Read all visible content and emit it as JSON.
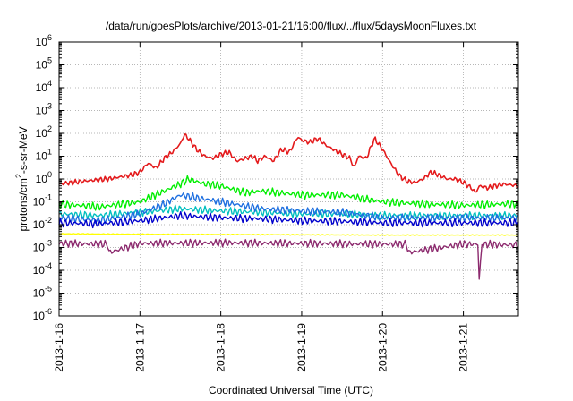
{
  "chart_data": {
    "type": "line",
    "title": "/data/run/goesPlots/archive/2013-01-21/16:00/flux/../flux/5daysMoonFluxes.txt",
    "xlabel": "Coordinated Universal Time (UTC)",
    "ylabel_parts": [
      "protons/cm",
      "2",
      "-s-sr-MeV"
    ],
    "x_range": [
      "2013-1-16",
      "2013-1-21 16:00"
    ],
    "x_ticks": [
      "2013-1-16",
      "2013-1-17",
      "2013-1-18",
      "2013-1-19",
      "2013-1-20",
      "2013-1-21"
    ],
    "y_scale": "log",
    "ylim": [
      1e-06,
      1000000.0
    ],
    "y_tick_exponents": [
      "-6",
      "-5",
      "-4",
      "-3",
      "-2",
      "-1",
      "0",
      "1",
      "2",
      "3",
      "4",
      "5",
      "6"
    ],
    "y_tick_base": "10",
    "grid": true,
    "legend": "none",
    "series": [
      {
        "color": "#e41a1c",
        "x_days": [
          0.0,
          0.3,
          0.6,
          0.9,
          1.0,
          1.1,
          1.2,
          1.3,
          1.4,
          1.5,
          1.55,
          1.6,
          1.7,
          1.8,
          1.9,
          2.0,
          2.1,
          2.2,
          2.3,
          2.4,
          2.45,
          2.55,
          2.65,
          2.75,
          2.85,
          2.95,
          3.0,
          3.1,
          3.2,
          3.3,
          3.45,
          3.6,
          3.65,
          3.7,
          3.8,
          3.9,
          4.0,
          4.1,
          4.2,
          4.3,
          4.4,
          4.5,
          4.6,
          4.7,
          4.8,
          4.9,
          5.0,
          5.1,
          5.15,
          5.2,
          5.3,
          5.4,
          5.5,
          5.68
        ],
        "values": [
          0.6,
          0.8,
          1.0,
          1.5,
          2.0,
          5.0,
          3.0,
          8.0,
          15.0,
          35.0,
          90.0,
          60.0,
          20.0,
          10.0,
          8.0,
          12.0,
          15.0,
          6.0,
          8.0,
          10.0,
          6.0,
          10.0,
          6.0,
          20.0,
          15.0,
          70.0,
          50.0,
          40.0,
          60.0,
          30.0,
          15.0,
          8.0,
          3.0,
          10.0,
          8.0,
          60.0,
          20.0,
          5.0,
          1.5,
          0.8,
          0.7,
          1.0,
          2.0,
          1.5,
          1.0,
          1.0,
          0.7,
          0.4,
          0.25,
          0.5,
          0.4,
          0.5,
          0.6,
          0.5
        ]
      },
      {
        "color": "#00ee00",
        "x_days": [
          0.0,
          0.5,
          1.0,
          1.3,
          1.5,
          1.6,
          1.8,
          2.0,
          2.3,
          2.5,
          3.0,
          3.5,
          4.0,
          4.5,
          5.0,
          5.5,
          5.68
        ],
        "values": [
          0.08,
          0.06,
          0.1,
          0.3,
          0.6,
          1.0,
          0.6,
          0.5,
          0.25,
          0.3,
          0.2,
          0.2,
          0.1,
          0.08,
          0.07,
          0.08,
          0.08
        ]
      },
      {
        "color": "#00bfbf",
        "x_days": [
          0.0,
          0.5,
          1.0,
          1.5,
          2.0,
          2.5,
          3.0,
          3.5,
          4.0,
          4.5,
          5.0,
          5.5,
          5.68
        ],
        "values": [
          0.03,
          0.025,
          0.035,
          0.05,
          0.04,
          0.035,
          0.03,
          0.03,
          0.025,
          0.025,
          0.025,
          0.025,
          0.025
        ]
      },
      {
        "color": "#1e6fe0",
        "x_days": [
          0.0,
          0.5,
          1.0,
          1.3,
          1.5,
          1.7,
          2.0,
          2.5,
          3.0,
          3.5,
          4.0,
          4.5,
          5.0,
          5.5,
          5.68
        ],
        "values": [
          0.02,
          0.015,
          0.03,
          0.08,
          0.2,
          0.15,
          0.1,
          0.05,
          0.04,
          0.035,
          0.02,
          0.02,
          0.02,
          0.02,
          0.02
        ]
      },
      {
        "color": "#0000cc",
        "x_days": [
          0.0,
          0.5,
          1.0,
          1.5,
          2.0,
          2.5,
          3.0,
          3.5,
          4.0,
          4.5,
          5.0,
          5.5,
          5.68
        ],
        "values": [
          0.012,
          0.011,
          0.015,
          0.025,
          0.02,
          0.018,
          0.015,
          0.014,
          0.012,
          0.012,
          0.012,
          0.012,
          0.012
        ]
      },
      {
        "color": "#ffff00",
        "x_days": [
          0.0,
          1.0,
          2.0,
          3.0,
          4.0,
          5.0,
          5.68
        ],
        "values": [
          0.004,
          0.0038,
          0.0037,
          0.0036,
          0.0035,
          0.0035,
          0.0035
        ]
      },
      {
        "color": "#8c2a6e",
        "x_days": [
          0.0,
          0.6,
          0.62,
          1.0,
          2.0,
          3.0,
          4.0,
          4.3,
          4.32,
          5.0,
          5.18,
          5.2,
          5.22,
          5.5,
          5.68
        ],
        "values": [
          0.0015,
          0.0014,
          0.0006,
          0.0015,
          0.0016,
          0.0015,
          0.0014,
          0.0014,
          0.0006,
          0.0014,
          0.0014,
          1.5e-05,
          0.0014,
          0.0013,
          0.0013
        ]
      }
    ]
  }
}
